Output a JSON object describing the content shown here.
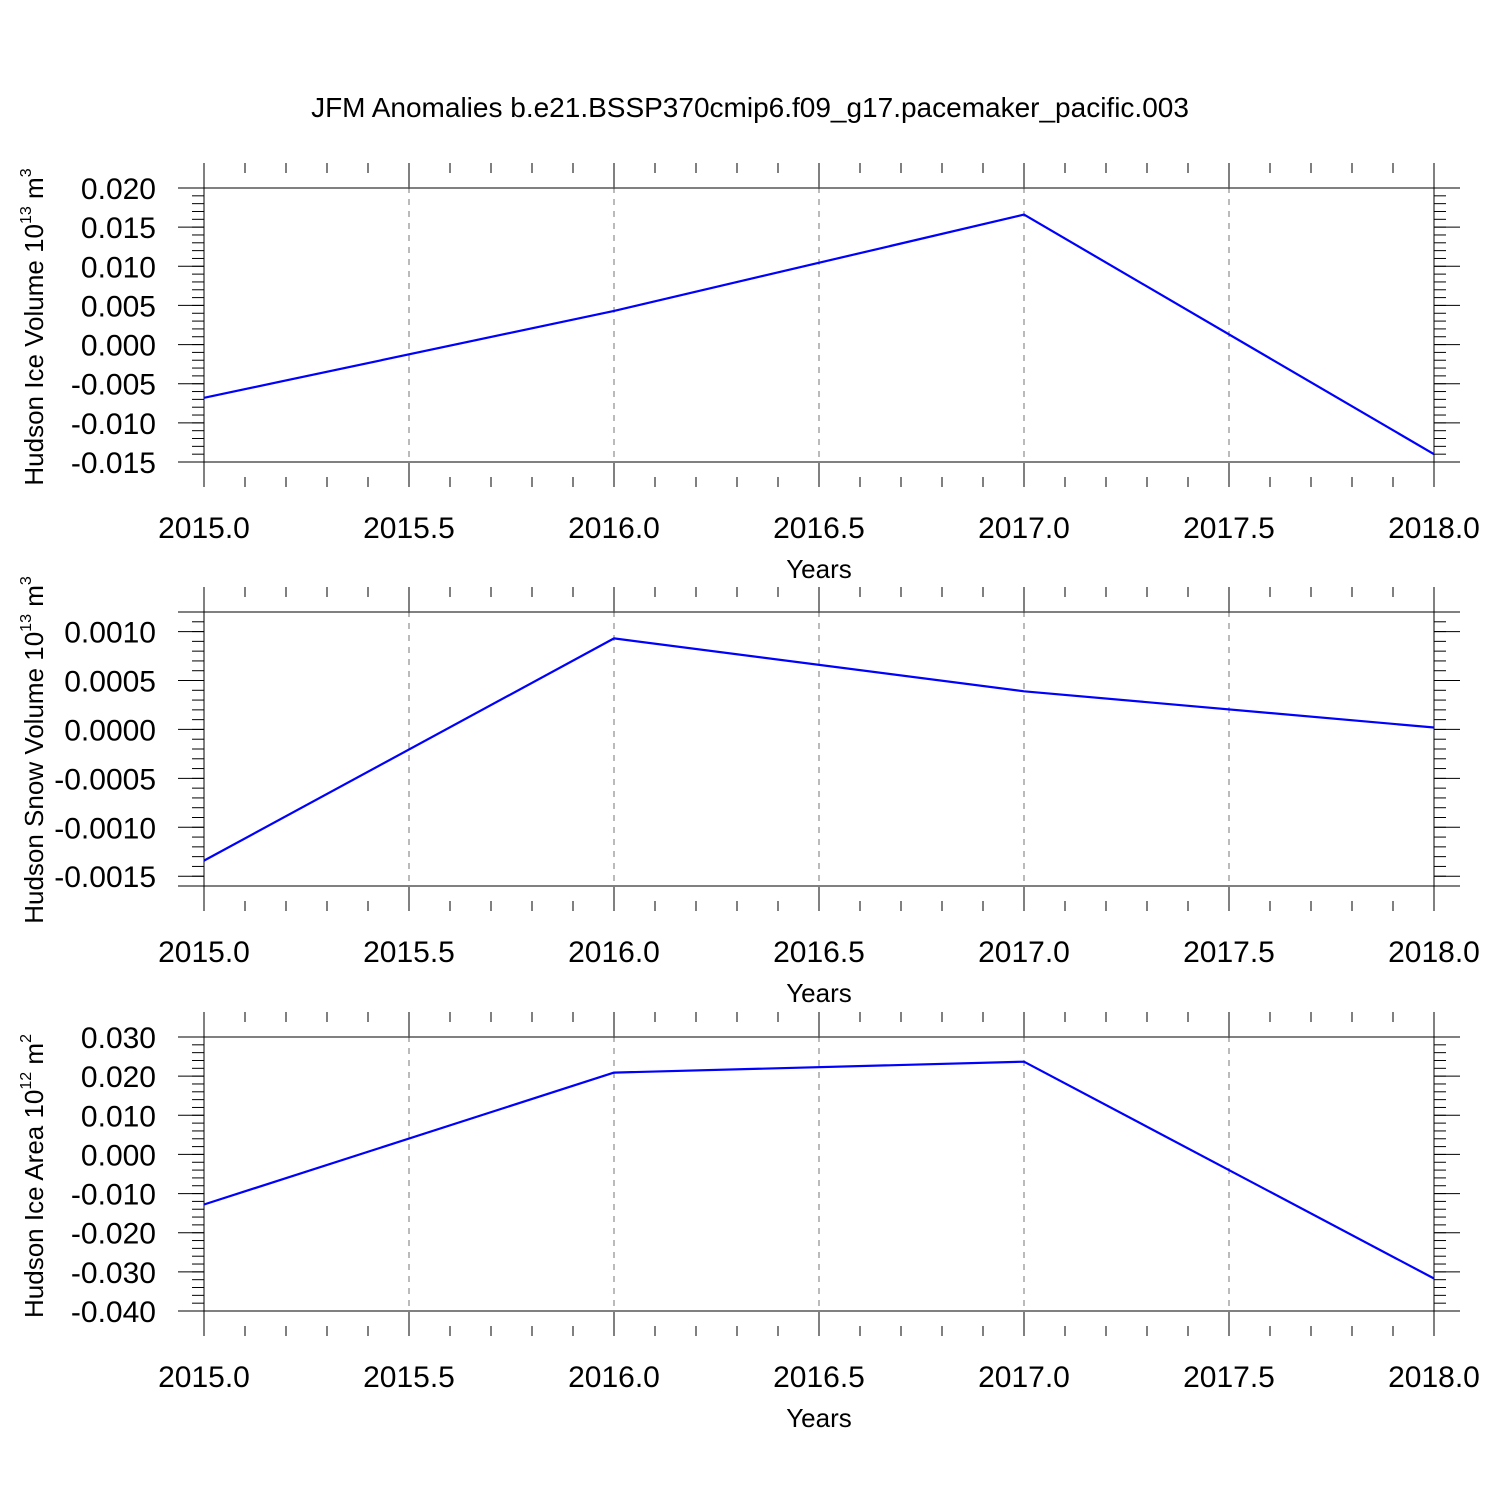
{
  "figure": {
    "title": "JFM Anomalies b.e21.BSSP370cmip6.f09_g17.pacemaker_pacific.003"
  },
  "chart_data": [
    {
      "type": "line",
      "title": "JFM Anomalies b.e21.BSSP370cmip6.f09_g17.pacemaker_pacific.003",
      "ylabel_main": "Hudson Ice Volume 10",
      "ylabel_exp": "13",
      "ylabel_unit": " m",
      "ylabel_unit_exp": "3",
      "xlabel": "Years",
      "xlim": [
        2015.0,
        2018.0
      ],
      "ylim": [
        -0.015,
        0.02
      ],
      "xticks": [
        2015.0,
        2015.5,
        2016.0,
        2016.5,
        2017.0,
        2017.5,
        2018.0
      ],
      "xtick_labels": [
        "2015.0",
        "2015.5",
        "2016.0",
        "2016.5",
        "2017.0",
        "2017.5",
        "2018.0"
      ],
      "yticks": [
        0.02,
        0.015,
        0.01,
        0.005,
        0.0,
        -0.005,
        -0.01,
        -0.015
      ],
      "ytick_labels": [
        "0.020",
        "0.015",
        "0.010",
        "0.005",
        "0.000",
        "-0.005",
        "-0.010",
        "-0.015"
      ],
      "grid": "vertical dashed",
      "series": [
        {
          "color": "#0000ff",
          "x": [
            2015,
            2016,
            2017,
            2018
          ],
          "y": [
            -0.0068,
            0.0043,
            0.0166,
            -0.014
          ]
        }
      ]
    },
    {
      "type": "line",
      "ylabel_main": "Hudson Snow Volume 10",
      "ylabel_exp": "13",
      "ylabel_unit": " m",
      "ylabel_unit_exp": "3",
      "xlabel": "Years",
      "xlim": [
        2015.0,
        2018.0
      ],
      "ylim": [
        -0.0016,
        0.0012
      ],
      "xticks": [
        2015.0,
        2015.5,
        2016.0,
        2016.5,
        2017.0,
        2017.5,
        2018.0
      ],
      "xtick_labels": [
        "2015.0",
        "2015.5",
        "2016.0",
        "2016.5",
        "2017.0",
        "2017.5",
        "2018.0"
      ],
      "yticks": [
        0.001,
        0.0005,
        0.0,
        -0.0005,
        -0.001,
        -0.0015
      ],
      "ytick_labels": [
        "0.0010",
        "0.0005",
        "0.0000",
        "-0.0005",
        "-0.0010",
        "-0.0015"
      ],
      "grid": "vertical dashed",
      "series": [
        {
          "color": "#0000ff",
          "x": [
            2015,
            2016,
            2017,
            2018
          ],
          "y": [
            -0.00134,
            0.00093,
            0.00039,
            2e-05
          ]
        }
      ]
    },
    {
      "type": "line",
      "ylabel_main": "Hudson Ice Area 10",
      "ylabel_exp": "12",
      "ylabel_unit": " m",
      "ylabel_unit_exp": "2",
      "xlabel": "Years",
      "xlim": [
        2015.0,
        2018.0
      ],
      "ylim": [
        -0.04,
        0.03
      ],
      "xticks": [
        2015.0,
        2015.5,
        2016.0,
        2016.5,
        2017.0,
        2017.5,
        2018.0
      ],
      "xtick_labels": [
        "2015.0",
        "2015.5",
        "2016.0",
        "2016.5",
        "2017.0",
        "2017.5",
        "2018.0"
      ],
      "yticks": [
        0.03,
        0.02,
        0.01,
        0.0,
        -0.01,
        -0.02,
        -0.03,
        -0.04
      ],
      "ytick_labels": [
        "0.030",
        "0.020",
        "0.010",
        "0.000",
        "-0.010",
        "-0.020",
        "-0.030",
        "-0.040"
      ],
      "grid": "vertical dashed",
      "series": [
        {
          "color": "#0000ff",
          "x": [
            2015,
            2016,
            2017,
            2018
          ],
          "y": [
            -0.0128,
            0.0209,
            0.0237,
            -0.0317
          ]
        }
      ]
    }
  ]
}
